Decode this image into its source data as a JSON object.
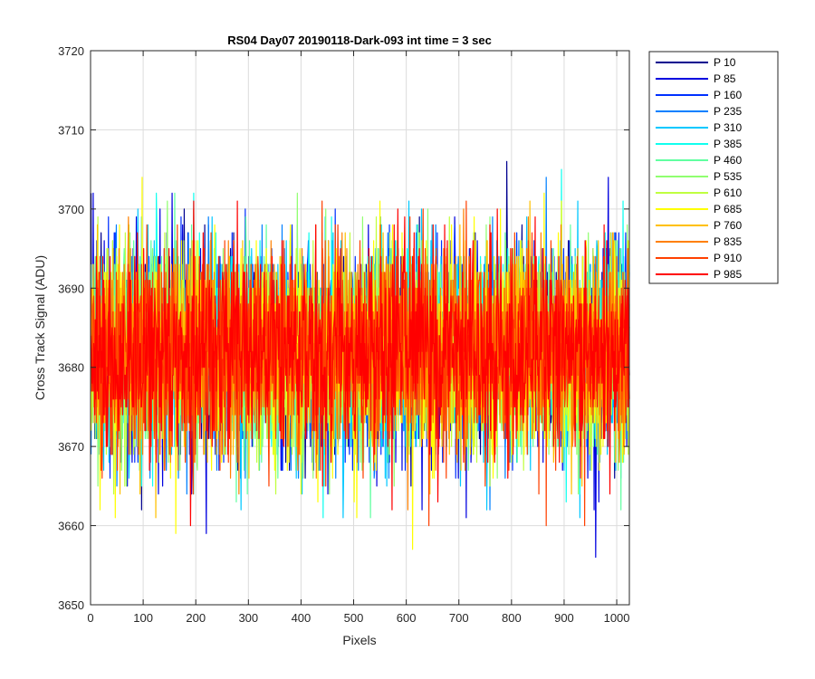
{
  "chart_data": {
    "type": "line",
    "title": "RS04 Day07 20190118-Dark-093 int time = 3 sec",
    "xlabel": "Pixels",
    "ylabel": "Cross Track Signal (ADU)",
    "xlim": [
      0,
      1024
    ],
    "ylim": [
      3650,
      3720
    ],
    "xticks": [
      0,
      100,
      200,
      300,
      400,
      500,
      600,
      700,
      800,
      900,
      1000
    ],
    "yticks": [
      3650,
      3660,
      3670,
      3680,
      3690,
      3700,
      3710,
      3720
    ],
    "grid": true,
    "legend_position": "outside-top-right",
    "n_points": 1024,
    "noise_model": {
      "mean": 3682,
      "std": 6.3,
      "min": 3654,
      "max": 3713
    },
    "series": [
      {
        "name": "P 10",
        "color": "#00008f",
        "seed": 11
      },
      {
        "name": "P 85",
        "color": "#0000df",
        "seed": 23
      },
      {
        "name": "P 160",
        "color": "#0030ff",
        "seed": 37
      },
      {
        "name": "P 235",
        "color": "#0080ff",
        "seed": 41
      },
      {
        "name": "P 310",
        "color": "#00c8ff",
        "seed": 53
      },
      {
        "name": "P 385",
        "color": "#10ffef",
        "seed": 67
      },
      {
        "name": "P 460",
        "color": "#60ffa0",
        "seed": 71
      },
      {
        "name": "P 535",
        "color": "#90ff70",
        "seed": 83
      },
      {
        "name": "P 610",
        "color": "#c0ff40",
        "seed": 97
      },
      {
        "name": "P 685",
        "color": "#ffff00",
        "seed": 101
      },
      {
        "name": "P 760",
        "color": "#ffc000",
        "seed": 113
      },
      {
        "name": "P 835",
        "color": "#ff8000",
        "seed": 127
      },
      {
        "name": "P 910",
        "color": "#ff4000",
        "seed": 131
      },
      {
        "name": "P 985",
        "color": "#ff0000",
        "seed": 139
      }
    ]
  }
}
